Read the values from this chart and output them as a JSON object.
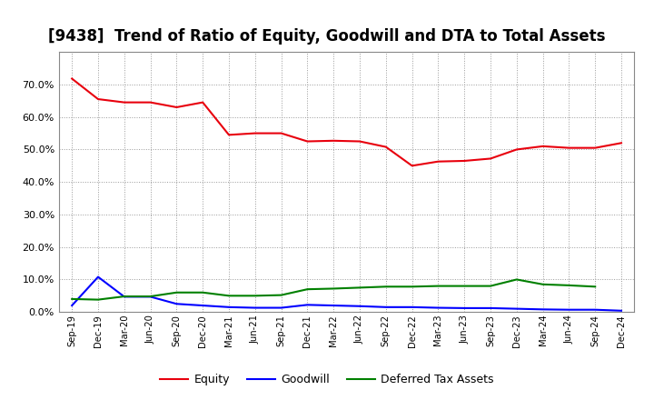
{
  "title": "[9438]  Trend of Ratio of Equity, Goodwill and DTA to Total Assets",
  "x_labels": [
    "Sep-19",
    "Dec-19",
    "Mar-20",
    "Jun-20",
    "Sep-20",
    "Dec-20",
    "Mar-21",
    "Jun-21",
    "Sep-21",
    "Dec-21",
    "Mar-22",
    "Jun-22",
    "Sep-22",
    "Dec-22",
    "Mar-23",
    "Jun-23",
    "Sep-23",
    "Dec-23",
    "Mar-24",
    "Jun-24",
    "Sep-24",
    "Dec-24"
  ],
  "equity": [
    0.718,
    0.655,
    0.645,
    0.645,
    0.63,
    0.645,
    0.545,
    0.55,
    0.55,
    0.525,
    0.527,
    0.525,
    0.508,
    0.45,
    0.463,
    0.465,
    0.472,
    0.5,
    0.51,
    0.505,
    0.505,
    0.52
  ],
  "goodwill": [
    0.02,
    0.108,
    0.047,
    0.047,
    0.025,
    0.02,
    0.015,
    0.013,
    0.013,
    0.022,
    0.02,
    0.018,
    0.015,
    0.015,
    0.013,
    0.012,
    0.012,
    0.01,
    0.008,
    0.007,
    0.007,
    0.004
  ],
  "dta": [
    0.04,
    0.038,
    0.048,
    0.048,
    0.06,
    0.06,
    0.05,
    0.05,
    0.052,
    0.07,
    0.072,
    0.075,
    0.078,
    0.078,
    0.08,
    0.08,
    0.08,
    0.1,
    0.085,
    0.082,
    0.078,
    null
  ],
  "equity_color": "#e8000d",
  "goodwill_color": "#0000ff",
  "dta_color": "#008000",
  "ylim": [
    0.0,
    0.8
  ],
  "yticks": [
    0.0,
    0.1,
    0.2,
    0.3,
    0.4,
    0.5,
    0.6,
    0.7
  ],
  "background_color": "#ffffff",
  "plot_bg_color": "#ffffff",
  "grid_color": "#aaaaaa",
  "title_fontsize": 12,
  "legend_labels": [
    "Equity",
    "Goodwill",
    "Deferred Tax Assets"
  ]
}
